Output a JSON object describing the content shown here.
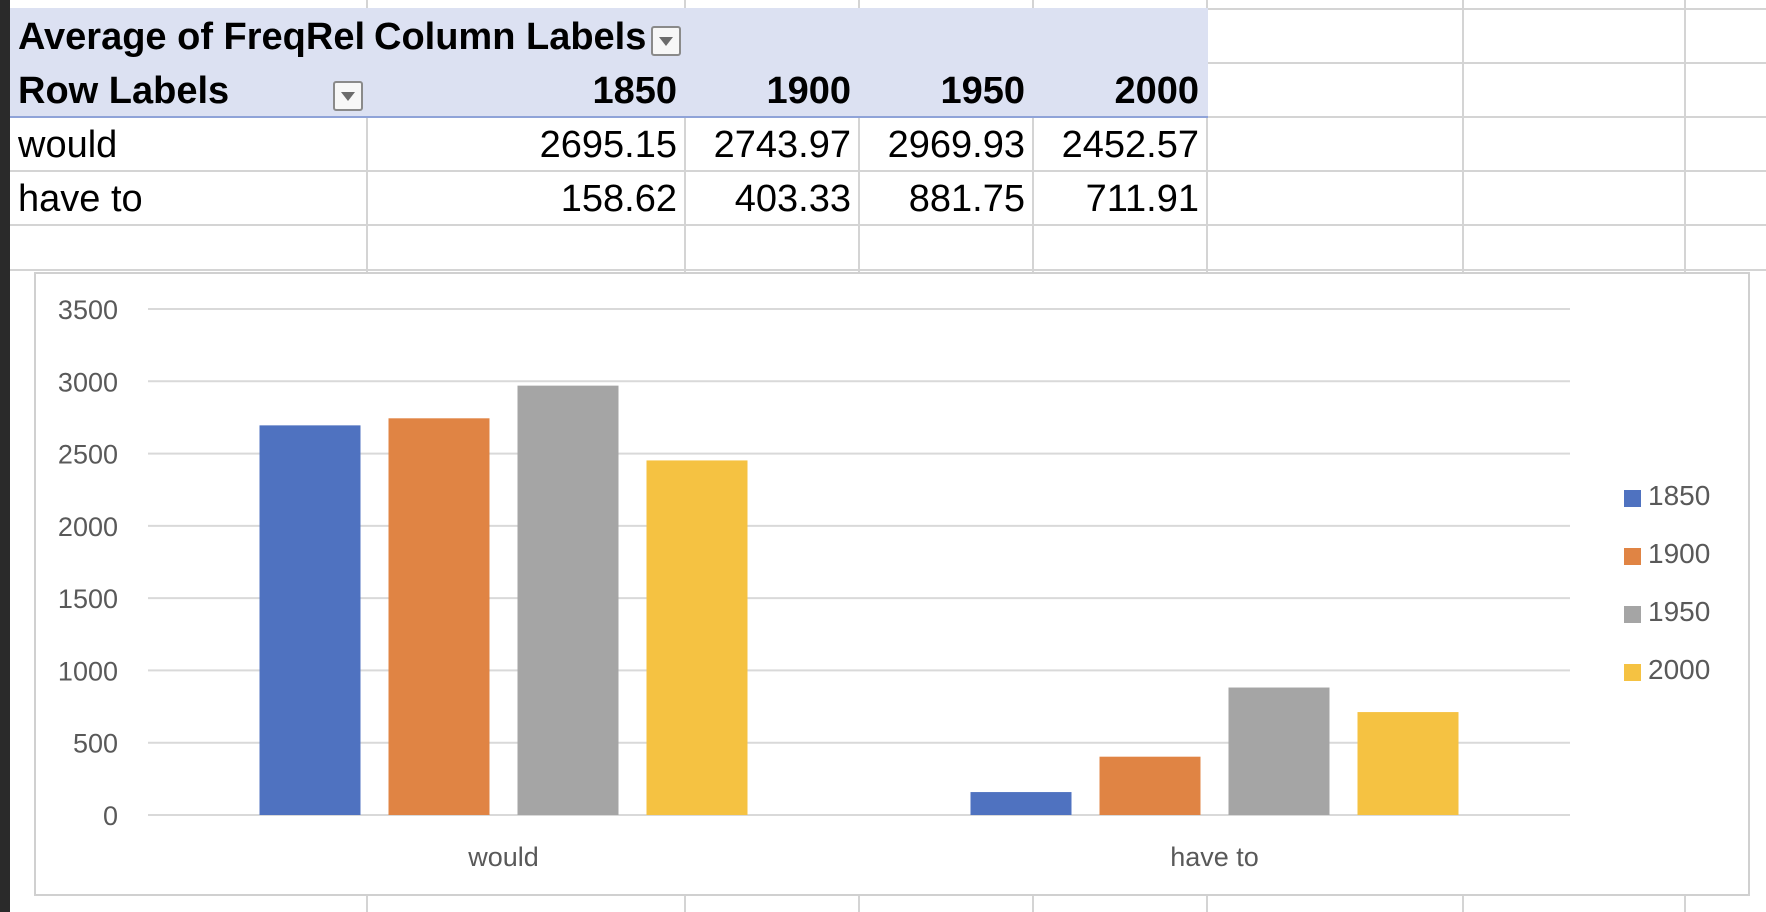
{
  "pivot": {
    "value_field": "Average of FreqRel",
    "column_labels": "Column Labels",
    "row_labels": "Row Labels",
    "columns": [
      "1850",
      "1900",
      "1950",
      "2000"
    ],
    "rows": [
      {
        "label": "would",
        "values": [
          "2695.15",
          "2743.97",
          "2969.93",
          "2452.57"
        ]
      },
      {
        "label": "have to",
        "values": [
          "158.62",
          "403.33",
          "881.75",
          "711.91"
        ]
      }
    ]
  },
  "chart_data": {
    "type": "bar",
    "categories": [
      "would",
      "have to"
    ],
    "series": [
      {
        "name": "1850",
        "values": [
          2695.15,
          158.62
        ],
        "color": "#4f72c0"
      },
      {
        "name": "1900",
        "values": [
          2743.97,
          403.33
        ],
        "color": "#e08444"
      },
      {
        "name": "1950",
        "values": [
          2969.93,
          881.75
        ],
        "color": "#a5a5a5"
      },
      {
        "name": "2000",
        "values": [
          2452.57,
          711.91
        ],
        "color": "#f5c242"
      }
    ],
    "ylim": [
      0,
      3500
    ],
    "yticks": [
      "0",
      "500",
      "1000",
      "1500",
      "2000",
      "2500",
      "3000",
      "3500"
    ],
    "grid": true,
    "legend_position": "right"
  }
}
